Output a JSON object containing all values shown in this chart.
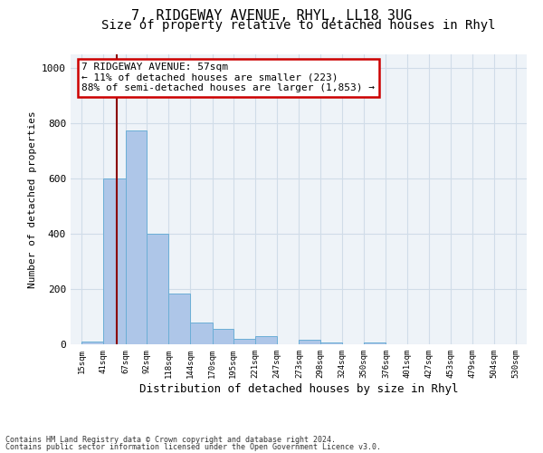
{
  "title1": "7, RIDGEWAY AVENUE, RHYL, LL18 3UG",
  "title2": "Size of property relative to detached houses in Rhyl",
  "xlabel": "Distribution of detached houses by size in Rhyl",
  "ylabel": "Number of detached properties",
  "footnote1": "Contains HM Land Registry data © Crown copyright and database right 2024.",
  "footnote2": "Contains public sector information licensed under the Open Government Licence v3.0.",
  "annotation_line1": "7 RIDGEWAY AVENUE: 57sqm",
  "annotation_line2": "← 11% of detached houses are smaller (223)",
  "annotation_line3": "88% of semi-detached houses are larger (1,853) →",
  "property_size": 57,
  "bar_edges": [
    15,
    41,
    67,
    92,
    118,
    144,
    170,
    195,
    221,
    247,
    273,
    298,
    324,
    350,
    376,
    401,
    427,
    453,
    479,
    504,
    530
  ],
  "bar_heights": [
    10,
    600,
    775,
    400,
    185,
    80,
    55,
    20,
    30,
    0,
    15,
    5,
    0,
    5,
    0,
    0,
    0,
    0,
    0,
    0
  ],
  "bar_color": "#aec6e8",
  "bar_edge_color": "#6baed6",
  "vline_color": "#8b0000",
  "vline_x": 57,
  "annotation_box_color": "#cc0000",
  "grid_color": "#d0dce8",
  "background_color": "#eef3f8",
  "ylim": [
    0,
    1050
  ],
  "yticks": [
    0,
    200,
    400,
    600,
    800,
    1000
  ],
  "title1_fontsize": 11,
  "title2_fontsize": 10,
  "xlabel_fontsize": 9,
  "ylabel_fontsize": 8,
  "annotation_fontsize": 8
}
